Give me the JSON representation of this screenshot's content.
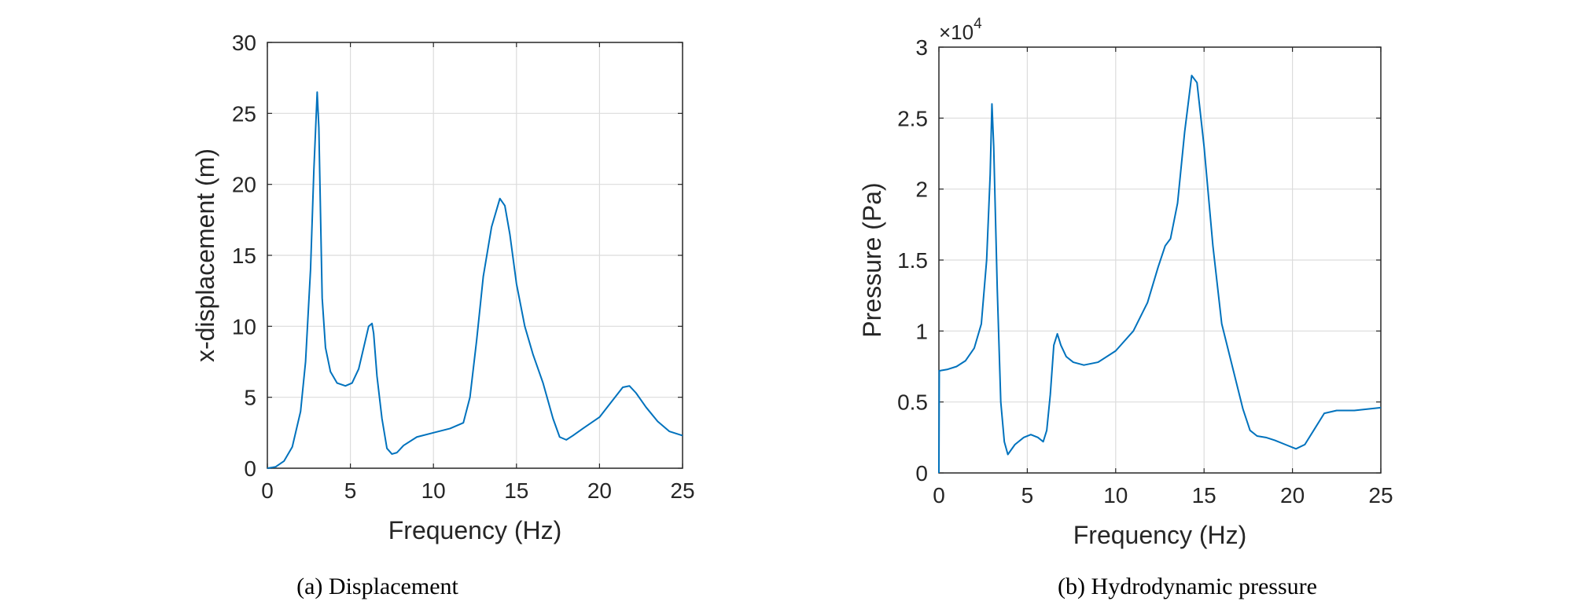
{
  "colors": {
    "line": "#0072BD",
    "grid": "#dcdcdc",
    "axis": "#262626"
  },
  "chart_data": [
    {
      "type": "line",
      "caption": "(a) Displacement",
      "xlabel": "Frequency (Hz)",
      "ylabel": "x-displacement (m)",
      "xlim": [
        0,
        25
      ],
      "ylim": [
        0,
        30
      ],
      "xticks": [
        0,
        5,
        10,
        15,
        20,
        25
      ],
      "yticks": [
        0,
        5,
        10,
        15,
        20,
        25,
        30
      ],
      "xtick_labels": [
        "0",
        "5",
        "10",
        "15",
        "20",
        "25"
      ],
      "ytick_labels": [
        "0",
        "5",
        "10",
        "15",
        "20",
        "25",
        "30"
      ],
      "grid": true,
      "series": [
        {
          "name": "x-displacement",
          "x": [
            0,
            0.5,
            1.0,
            1.5,
            2.0,
            2.3,
            2.6,
            2.8,
            3.0,
            3.1,
            3.2,
            3.3,
            3.5,
            3.8,
            4.2,
            4.7,
            5.1,
            5.5,
            5.8,
            6.1,
            6.3,
            6.4,
            6.6,
            6.9,
            7.2,
            7.5,
            7.8,
            8.2,
            9.0,
            10.0,
            11.0,
            11.8,
            12.2,
            12.6,
            13.0,
            13.5,
            14.0,
            14.3,
            14.6,
            15.0,
            15.5,
            16.0,
            16.6,
            17.2,
            17.6,
            18.0,
            18.4,
            19.0,
            20.0,
            20.8,
            21.4,
            21.8,
            22.2,
            22.8,
            23.5,
            24.2,
            25.0
          ],
          "values": [
            0,
            0.1,
            0.5,
            1.5,
            4.0,
            7.5,
            14.0,
            21.0,
            26.5,
            24.0,
            18.0,
            12.0,
            8.5,
            6.8,
            6.0,
            5.8,
            6.0,
            7.0,
            8.5,
            10.0,
            10.2,
            9.5,
            6.5,
            3.5,
            1.4,
            1.0,
            1.1,
            1.6,
            2.2,
            2.5,
            2.8,
            3.2,
            5.0,
            9.0,
            13.5,
            17.0,
            19.0,
            18.5,
            16.5,
            13.0,
            10.0,
            8.0,
            6.0,
            3.5,
            2.2,
            2.0,
            2.3,
            2.8,
            3.6,
            4.8,
            5.7,
            5.8,
            5.3,
            4.3,
            3.3,
            2.6,
            2.3
          ]
        }
      ]
    },
    {
      "type": "line",
      "caption": "(b) Hydrodynamic pressure",
      "xlabel": "Frequency (Hz)",
      "ylabel": "Pressure (Pa)",
      "xlim": [
        0,
        25
      ],
      "ylim": [
        0,
        3
      ],
      "xticks": [
        0,
        5,
        10,
        15,
        20,
        25
      ],
      "yticks": [
        0,
        0.5,
        1,
        1.5,
        2,
        2.5,
        3
      ],
      "xtick_labels": [
        "0",
        "5",
        "10",
        "15",
        "20",
        "25"
      ],
      "ytick_labels": [
        "0",
        "0.5",
        "1",
        "1.5",
        "2",
        "2.5",
        "3"
      ],
      "exponent_base": "×10",
      "exponent_power": "4",
      "grid": true,
      "series": [
        {
          "name": "pressure",
          "x": [
            0,
            0.02,
            0.05,
            0.5,
            1.0,
            1.5,
            2.0,
            2.4,
            2.7,
            2.9,
            3.0,
            3.1,
            3.3,
            3.5,
            3.7,
            3.9,
            4.3,
            4.8,
            5.2,
            5.6,
            5.9,
            6.1,
            6.3,
            6.5,
            6.7,
            6.9,
            7.2,
            7.6,
            8.2,
            9.0,
            10.0,
            11.0,
            11.8,
            12.4,
            12.8,
            13.1,
            13.5,
            13.9,
            14.3,
            14.6,
            15.0,
            15.5,
            16.0,
            16.6,
            17.2,
            17.6,
            18.0,
            18.5,
            19.0,
            19.6,
            20.2,
            20.7,
            21.2,
            21.8,
            22.5,
            23.5,
            25.0
          ],
          "values": [
            0,
            0.72,
            0.72,
            0.73,
            0.75,
            0.79,
            0.88,
            1.05,
            1.5,
            2.1,
            2.6,
            2.3,
            1.3,
            0.5,
            0.22,
            0.13,
            0.2,
            0.25,
            0.27,
            0.25,
            0.22,
            0.3,
            0.55,
            0.9,
            0.98,
            0.9,
            0.82,
            0.78,
            0.76,
            0.78,
            0.86,
            1.0,
            1.2,
            1.45,
            1.6,
            1.65,
            1.9,
            2.4,
            2.8,
            2.75,
            2.3,
            1.6,
            1.05,
            0.75,
            0.45,
            0.3,
            0.26,
            0.25,
            0.23,
            0.2,
            0.17,
            0.2,
            0.3,
            0.42,
            0.44,
            0.44,
            0.46
          ]
        }
      ]
    }
  ]
}
